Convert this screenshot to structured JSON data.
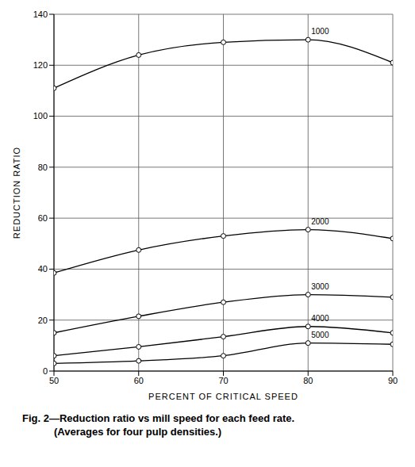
{
  "chart_data": {
    "type": "line",
    "title": "Fig. 2—Reduction ratio vs mill speed for each feed rate.",
    "subtitle": "(Averages for four pulp densities.)",
    "x_label": "PERCENT OF CRITICAL SPEED",
    "y_label": "REDUCTION RATIO",
    "x": [
      50,
      60,
      70,
      80,
      90
    ],
    "xlim": [
      50,
      90
    ],
    "xticks": [
      50,
      60,
      70,
      80,
      90
    ],
    "ylim": [
      0,
      140
    ],
    "yticks": [
      0,
      20,
      40,
      60,
      80,
      100,
      120,
      140
    ],
    "grid": true,
    "marker": "circle",
    "line_style": "solid",
    "series": [
      {
        "name": "1000",
        "color": "#000000",
        "values": [
          111,
          124,
          129,
          130,
          121
        ]
      },
      {
        "name": "2000",
        "color": "#000000",
        "values": [
          38.5,
          47.5,
          53,
          55.5,
          52
        ]
      },
      {
        "name": "3000",
        "color": "#000000",
        "values": [
          15,
          21.5,
          27,
          30,
          29
        ]
      },
      {
        "name": "4000",
        "color": "#000000",
        "values": [
          6,
          9.5,
          13.5,
          17.5,
          15
        ]
      },
      {
        "name": "5000",
        "color": "#000000",
        "values": [
          3,
          4,
          6,
          11,
          10.5
        ]
      }
    ]
  }
}
